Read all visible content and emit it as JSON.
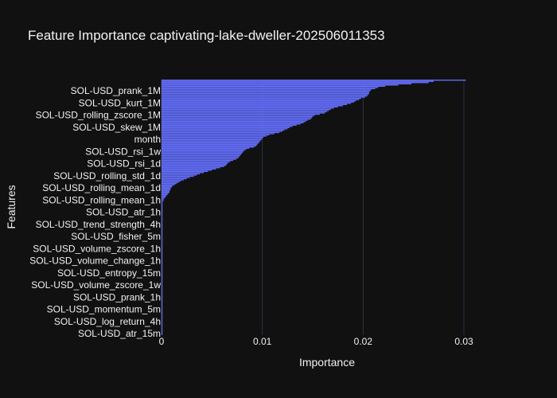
{
  "chart_data": {
    "type": "bar",
    "orientation": "horizontal",
    "title": "Feature Importance captivating-lake-dweller-202506011353",
    "xlabel": "Importance",
    "ylabel": "Features",
    "xlim": [
      0,
      0.0345
    ],
    "xticks": [
      0,
      0.01,
      0.02,
      0.03
    ],
    "xtick_labels": [
      "0",
      "0.01",
      "0.02",
      "0.03"
    ],
    "bar_color": "#636efa",
    "background": "#111111",
    "grid_color": "#283442",
    "grid": true,
    "visible_feature_labels": [
      "SOL-USD_prank_1M",
      "SOL-USD_kurt_1M",
      "SOL-USD_rolling_zscore_1M",
      "SOL-USD_skew_1M",
      "month",
      "SOL-USD_rsi_1w",
      "SOL-USD_rsi_1d",
      "SOL-USD_rolling_std_1d",
      "SOL-USD_rolling_mean_1d",
      "SOL-USD_rolling_mean_1h",
      "SOL-USD_atr_1h",
      "SOL-USD_trend_strength_4h",
      "SOL-USD_fisher_5m",
      "SOL-USD_volume_zscore_1h",
      "SOL-USD_volume_change_1h",
      "SOL-USD_entropy_15m",
      "SOL-USD_volume_zscore_1w",
      "SOL-USD_prank_1h",
      "SOL-USD_momentum_5m",
      "SOL-USD_log_return_4h",
      "SOL-USD_atr_15m"
    ],
    "values_top_to_bottom": [
      0.0302,
      0.027,
      0.0265,
      0.0248,
      0.0235,
      0.0222,
      0.0215,
      0.0212,
      0.0208,
      0.0207,
      0.0206,
      0.0206,
      0.0205,
      0.0204,
      0.0202,
      0.0198,
      0.0196,
      0.0193,
      0.0191,
      0.0188,
      0.0184,
      0.018,
      0.0175,
      0.0171,
      0.0168,
      0.0166,
      0.0164,
      0.0162,
      0.0157,
      0.0152,
      0.015,
      0.0149,
      0.0148,
      0.0145,
      0.0143,
      0.0141,
      0.0138,
      0.0134,
      0.013,
      0.0127,
      0.0125,
      0.0122,
      0.012,
      0.0117,
      0.0112,
      0.0107,
      0.0104,
      0.0101,
      0.01,
      0.0099,
      0.0098,
      0.0097,
      0.0096,
      0.0095,
      0.0094,
      0.0092,
      0.0087,
      0.0084,
      0.0082,
      0.0081,
      0.008,
      0.0079,
      0.0078,
      0.0077,
      0.0076,
      0.0074,
      0.0071,
      0.0068,
      0.0066,
      0.0065,
      0.0064,
      0.0062,
      0.0058,
      0.0054,
      0.005,
      0.0046,
      0.0042,
      0.0038,
      0.0035,
      0.0032,
      0.0028,
      0.0025,
      0.0022,
      0.0019,
      0.0017,
      0.0015,
      0.0013,
      0.0011,
      0.001,
      0.0009,
      0.0009,
      0.0008,
      0.0008,
      0.0007,
      0.0006,
      0.0005,
      0.0004,
      0.0003,
      0.0002,
      0.0002,
      0.0001,
      0.0001,
      0.0001,
      0.0001,
      0.0001,
      0.0001,
      0.0001,
      0.0001,
      0.0001,
      0.0001,
      0.0001,
      0.0001,
      0.0001,
      0.0001,
      0.0001,
      0.0001,
      0.0001,
      0.0001,
      0.0001,
      0.0001,
      0.0001,
      0.0001,
      0.0001,
      0.0001,
      0.0001,
      0.0001,
      0.0001,
      0.0001,
      0.0001,
      0.0001,
      0.0001,
      0.0001,
      0.0001,
      0.0001,
      0.0001,
      0.0001,
      0.0001,
      0.0001,
      0.0001,
      0.0001,
      0.0001,
      0.0001,
      0.0001,
      0.0001,
      0.0001,
      0.0001,
      0.0001,
      0.0001,
      0.0001,
      0.0001,
      0.0001,
      0.0001,
      0.0001,
      0.0001,
      0.0001,
      0.0001,
      0.0001,
      0.0001,
      0.0001,
      0.0001,
      0.0001,
      0.0001,
      0.0001,
      0.0001,
      0.0001,
      0.0001,
      0.0001,
      0.0001,
      0.0001,
      0.0001,
      0.0001,
      0.0001,
      0.0001,
      0.0001,
      0.0001,
      0.0001,
      0.0001,
      0.0001,
      0.0001,
      0.0001,
      0.0001,
      0.0001,
      0.0001,
      0.0001,
      0.0001,
      0.0001,
      0.0001,
      0.0001,
      0.0001,
      0.0001,
      0.0001,
      0.0001,
      0.0001,
      0.0001,
      0.0001,
      0.0001,
      0.0001,
      0.0001,
      0.0001,
      0.0001,
      0.0001,
      0.0001,
      0.0001,
      0.0001,
      0.0001,
      0.0001,
      0.0001,
      0.0001,
      0.0001,
      0.0001
    ]
  }
}
